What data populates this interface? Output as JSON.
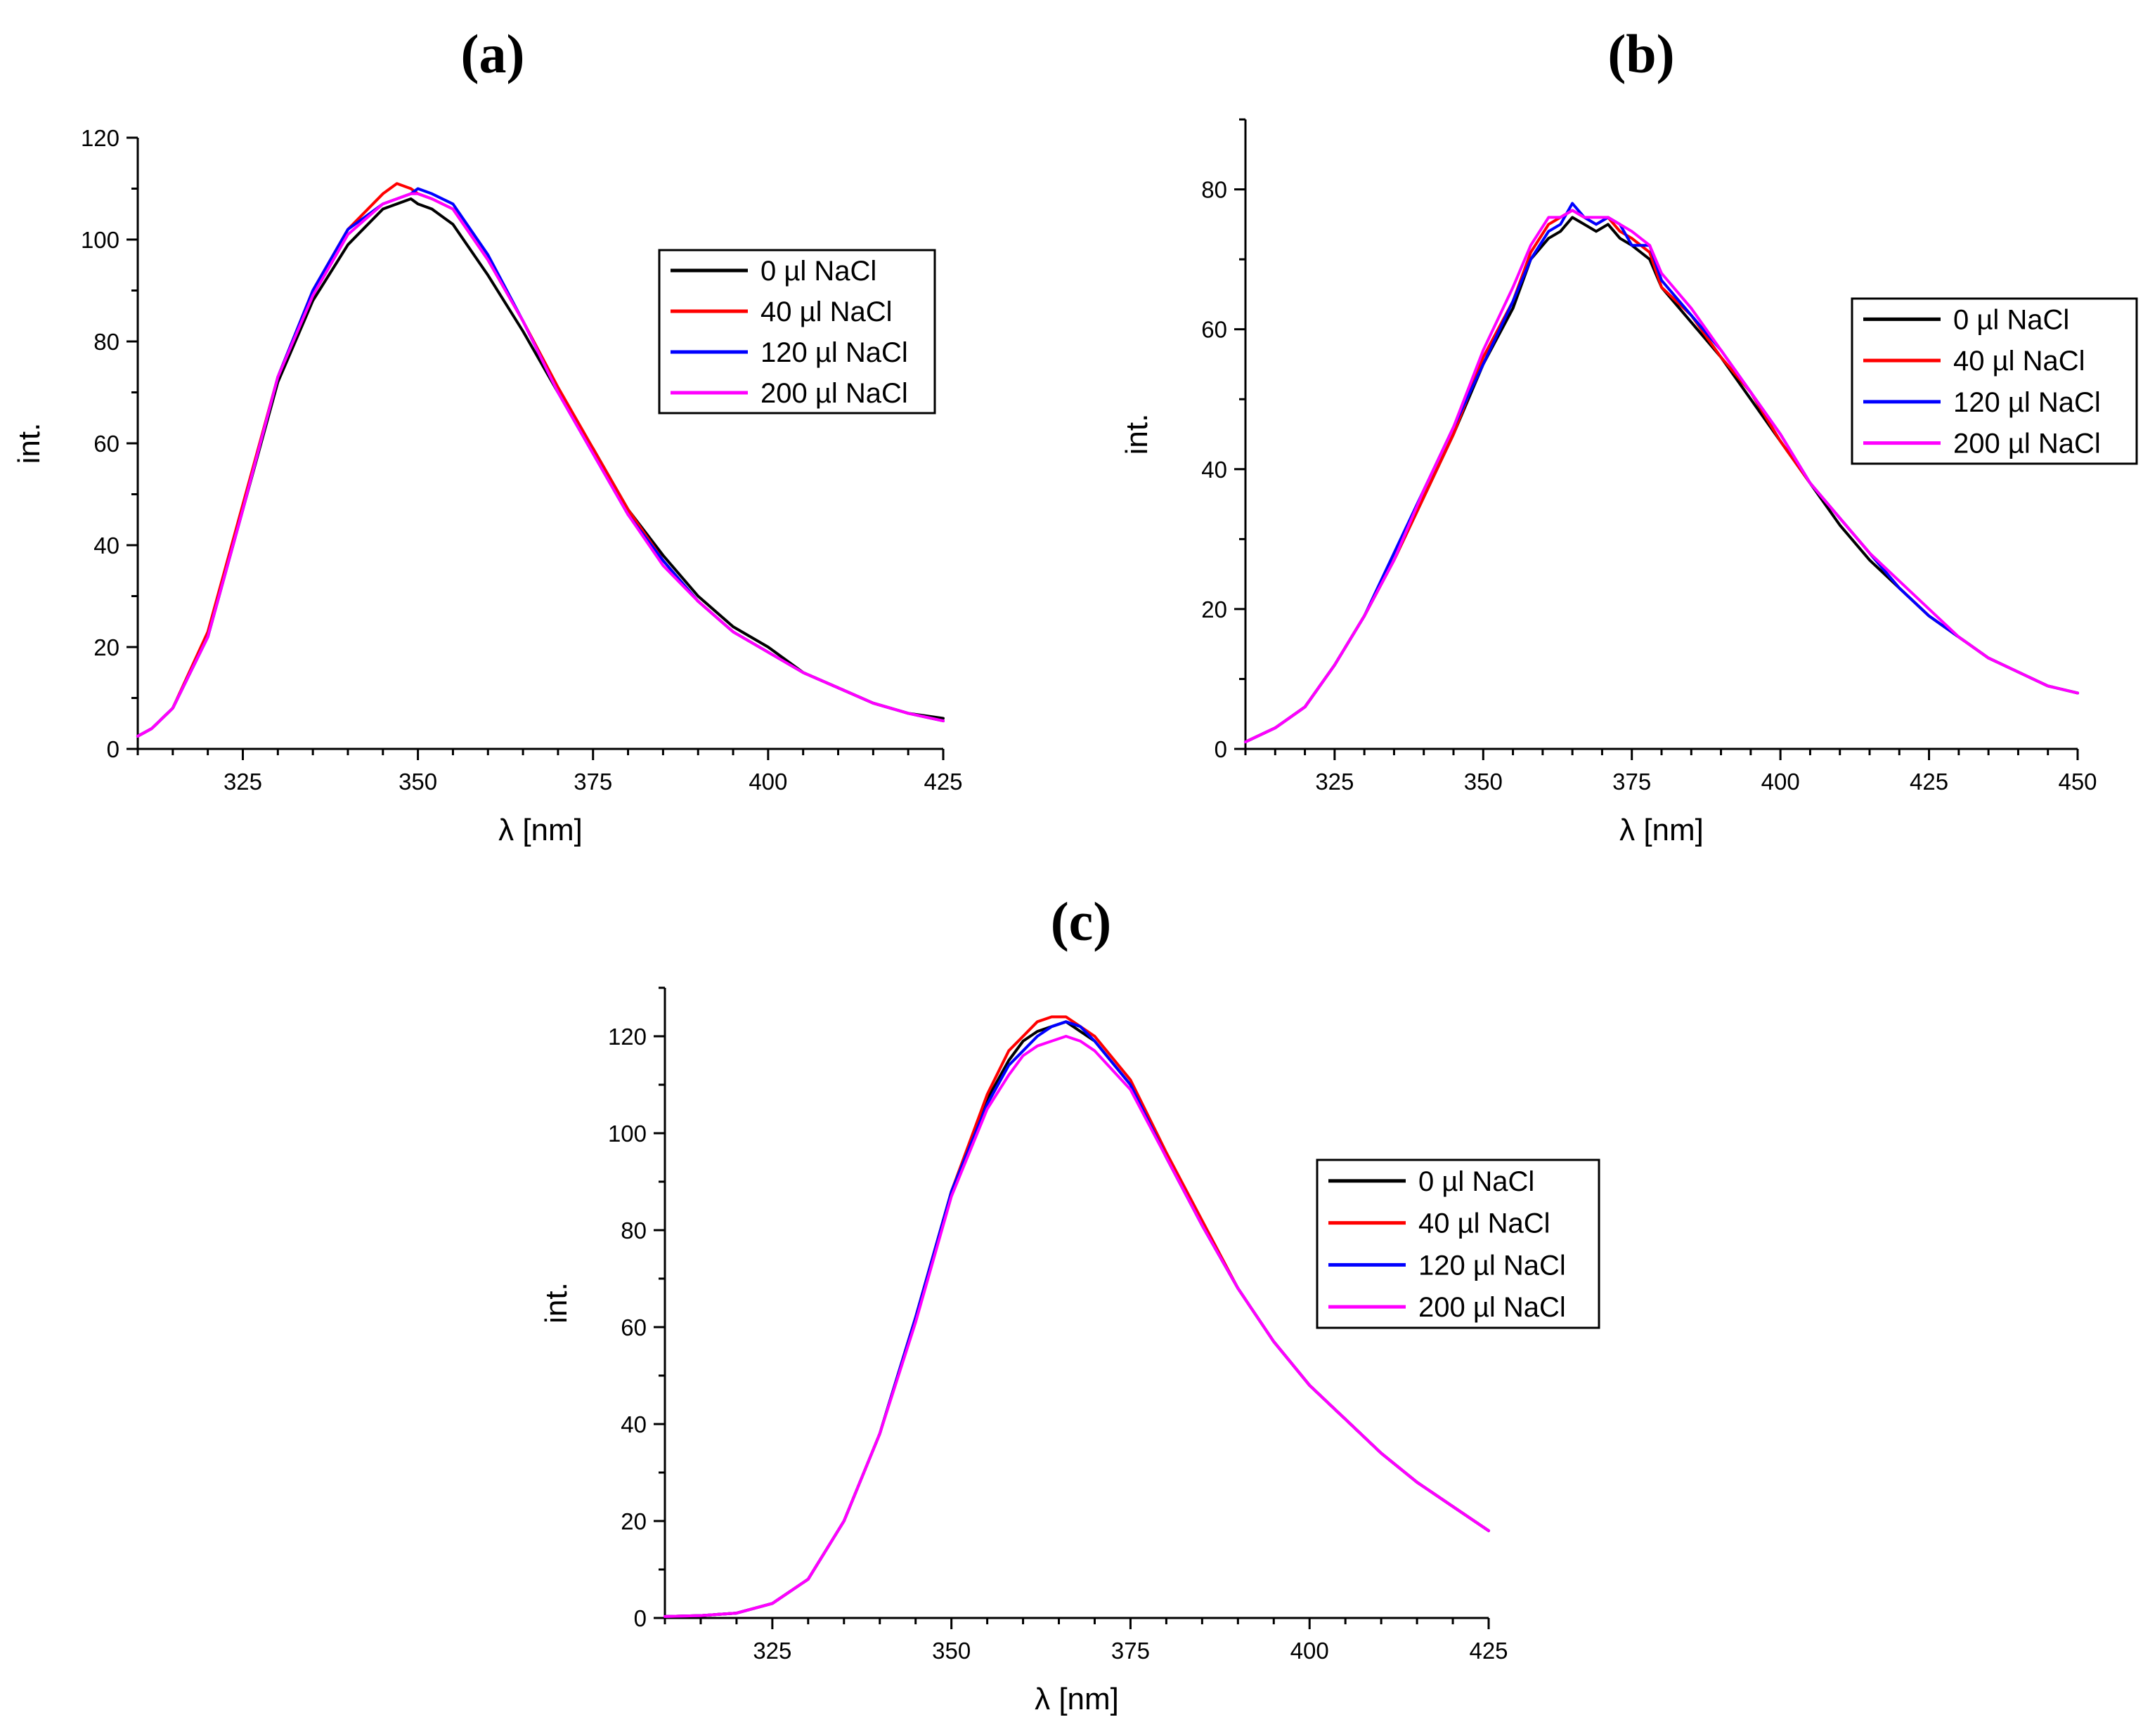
{
  "figure": {
    "legend_title": "",
    "series_names": [
      "0 µl NaCl",
      "40 µl NaCl",
      "120 µl NaCl",
      "200 µl NaCl"
    ],
    "series_colors": [
      "#000000",
      "#ff0000",
      "#0000ff",
      "#ff00ff"
    ]
  },
  "chart_data": [
    {
      "id": "a",
      "type": "line",
      "title": "(a)",
      "xlabel": "λ [nm]",
      "ylabel": "int.",
      "xlim": [
        310,
        425
      ],
      "ylim": [
        0,
        120
      ],
      "xticks": [
        325,
        350,
        375,
        400,
        425
      ],
      "yticks": [
        0,
        20,
        40,
        60,
        80,
        100,
        120
      ],
      "legend_position": "top-right",
      "series": [
        {
          "name": "0 µl NaCl",
          "color": "#000000",
          "x": [
            310,
            312,
            315,
            320,
            325,
            330,
            335,
            340,
            345,
            347,
            349,
            350,
            352,
            355,
            360,
            365,
            370,
            375,
            380,
            385,
            390,
            395,
            400,
            405,
            410,
            415,
            420,
            425
          ],
          "y": [
            2.5,
            4,
            8,
            22,
            47,
            72,
            88,
            99,
            106,
            107,
            108,
            107,
            106,
            103,
            93,
            82,
            70,
            59,
            47,
            38,
            30,
            24,
            20,
            15,
            12,
            9,
            7,
            6
          ]
        },
        {
          "name": "40 µl NaCl",
          "color": "#ff0000",
          "x": [
            310,
            312,
            315,
            320,
            325,
            330,
            335,
            340,
            345,
            347,
            349,
            350,
            352,
            355,
            360,
            365,
            370,
            375,
            380,
            385,
            390,
            395,
            400,
            405,
            410,
            415,
            420,
            425
          ],
          "y": [
            2.5,
            4,
            8,
            23,
            48,
            73,
            90,
            102,
            109,
            111,
            110,
            109,
            108,
            106,
            96,
            84,
            71,
            59,
            47,
            37,
            29,
            23,
            19,
            15,
            12,
            9,
            7,
            5.5
          ]
        },
        {
          "name": "120 µl NaCl",
          "color": "#0000ff",
          "x": [
            310,
            312,
            315,
            320,
            325,
            330,
            335,
            340,
            345,
            347,
            349,
            350,
            352,
            355,
            360,
            365,
            370,
            375,
            380,
            385,
            390,
            395,
            400,
            405,
            410,
            415,
            420,
            425
          ],
          "y": [
            2.5,
            4,
            8,
            22,
            47,
            73,
            90,
            102,
            107,
            108,
            109,
            110,
            109,
            107,
            97,
            84,
            70,
            58,
            46,
            37,
            29,
            23,
            19,
            15,
            12,
            9,
            7,
            5.5
          ]
        },
        {
          "name": "200 µl NaCl",
          "color": "#ff00ff",
          "x": [
            310,
            312,
            315,
            320,
            325,
            330,
            335,
            340,
            345,
            347,
            349,
            350,
            352,
            355,
            360,
            365,
            370,
            375,
            380,
            385,
            390,
            395,
            400,
            405,
            410,
            415,
            420,
            425
          ],
          "y": [
            2.5,
            4,
            8,
            22,
            47,
            73,
            89,
            101,
            107,
            108,
            109,
            109,
            108,
            106,
            96,
            84,
            70,
            58,
            46,
            36,
            29,
            23,
            19,
            15,
            12,
            9,
            7,
            5.5
          ]
        }
      ]
    },
    {
      "id": "b",
      "type": "line",
      "title": "(b)",
      "xlabel": "λ [nm]",
      "ylabel": "int.",
      "xlim": [
        310,
        450
      ],
      "ylim": [
        0,
        90
      ],
      "xticks": [
        325,
        350,
        375,
        400,
        425,
        450
      ],
      "yticks": [
        0,
        20,
        40,
        60,
        80
      ],
      "legend_position": "right",
      "series": [
        {
          "name": "0 µl NaCl",
          "color": "#000000",
          "x": [
            310,
            315,
            320,
            325,
            330,
            335,
            340,
            345,
            350,
            355,
            358,
            361,
            363,
            365,
            367,
            369,
            371,
            373,
            375,
            378,
            380,
            385,
            390,
            395,
            400,
            405,
            410,
            415,
            420,
            425,
            430,
            435,
            440,
            445,
            450
          ],
          "y": [
            1,
            3,
            6,
            12,
            19,
            27,
            36,
            45,
            55,
            63,
            70,
            73,
            74,
            76,
            75,
            74,
            75,
            73,
            72,
            70,
            66,
            61,
            56,
            50,
            44,
            38,
            32,
            27,
            23,
            19,
            16,
            13,
            11,
            9,
            8
          ]
        },
        {
          "name": "40 µl NaCl",
          "color": "#ff0000",
          "x": [
            310,
            315,
            320,
            325,
            330,
            335,
            340,
            345,
            350,
            355,
            358,
            361,
            363,
            365,
            367,
            369,
            371,
            373,
            375,
            378,
            380,
            385,
            390,
            395,
            400,
            405,
            410,
            415,
            420,
            425,
            430,
            435,
            440,
            445,
            450
          ],
          "y": [
            1,
            3,
            6,
            12,
            19,
            27,
            36,
            45,
            56,
            64,
            71,
            75,
            76,
            77,
            76,
            75,
            76,
            74,
            73,
            71,
            66,
            62,
            56,
            51,
            44,
            38,
            33,
            28,
            23,
            19,
            16,
            13,
            11,
            9,
            8
          ]
        },
        {
          "name": "120 µl NaCl",
          "color": "#0000ff",
          "x": [
            310,
            315,
            320,
            325,
            330,
            335,
            340,
            345,
            350,
            355,
            358,
            361,
            363,
            365,
            367,
            369,
            371,
            373,
            375,
            378,
            380,
            385,
            390,
            395,
            400,
            405,
            410,
            415,
            420,
            425,
            430,
            435,
            440,
            445,
            450
          ],
          "y": [
            1,
            3,
            6,
            12,
            19,
            28,
            37,
            46,
            55,
            64,
            70,
            74,
            75,
            78,
            76,
            75,
            76,
            75,
            72,
            72,
            67,
            62,
            57,
            51,
            45,
            38,
            33,
            28,
            23,
            19,
            16,
            13,
            11,
            9,
            8
          ]
        },
        {
          "name": "200 µl NaCl",
          "color": "#ff00ff",
          "x": [
            310,
            315,
            320,
            325,
            330,
            335,
            340,
            345,
            350,
            355,
            358,
            361,
            363,
            365,
            367,
            369,
            371,
            373,
            375,
            378,
            380,
            385,
            390,
            395,
            400,
            405,
            410,
            415,
            420,
            425,
            430,
            435,
            440,
            445,
            450
          ],
          "y": [
            1,
            3,
            6,
            12,
            19,
            27,
            37,
            46,
            57,
            66,
            72,
            76,
            76,
            77,
            76,
            76,
            76,
            75,
            74,
            72,
            68,
            63,
            57,
            51,
            45,
            38,
            33,
            28,
            24,
            20,
            16,
            13,
            11,
            9,
            8
          ]
        }
      ]
    },
    {
      "id": "c",
      "type": "line",
      "title": "(c)",
      "xlabel": "λ [nm]",
      "ylabel": "int.",
      "xlim": [
        310,
        425
      ],
      "ylim": [
        0,
        130
      ],
      "xticks": [
        325,
        350,
        375,
        400,
        425
      ],
      "yticks": [
        0,
        20,
        40,
        60,
        80,
        100,
        120
      ],
      "legend_position": "right",
      "series": [
        {
          "name": "0 µl NaCl",
          "color": "#000000",
          "x": [
            310,
            315,
            320,
            325,
            330,
            335,
            340,
            345,
            350,
            355,
            358,
            360,
            362,
            364,
            366,
            368,
            370,
            375,
            380,
            385,
            390,
            395,
            400,
            405,
            410,
            415,
            420,
            425
          ],
          "y": [
            0.3,
            0.5,
            1,
            3,
            8,
            20,
            38,
            62,
            88,
            107,
            115,
            119,
            121,
            122,
            123,
            121,
            119,
            110,
            95,
            81,
            68,
            57,
            48,
            41,
            34,
            28,
            23,
            18
          ]
        },
        {
          "name": "40 µl NaCl",
          "color": "#ff0000",
          "x": [
            310,
            315,
            320,
            325,
            330,
            335,
            340,
            345,
            350,
            355,
            358,
            360,
            362,
            364,
            366,
            368,
            370,
            375,
            380,
            385,
            390,
            395,
            400,
            405,
            410,
            415,
            420,
            425
          ],
          "y": [
            0.3,
            0.5,
            1,
            3,
            8,
            20,
            38,
            62,
            88,
            108,
            117,
            120,
            123,
            124,
            124,
            122,
            120,
            111,
            96,
            82,
            68,
            57,
            48,
            41,
            34,
            28,
            23,
            18
          ]
        },
        {
          "name": "120 µl NaCl",
          "color": "#0000ff",
          "x": [
            310,
            315,
            320,
            325,
            330,
            335,
            340,
            345,
            350,
            355,
            358,
            360,
            362,
            364,
            366,
            368,
            370,
            375,
            380,
            385,
            390,
            395,
            400,
            405,
            410,
            415,
            420,
            425
          ],
          "y": [
            0.3,
            0.5,
            1,
            3,
            8,
            20,
            38,
            62,
            88,
            106,
            114,
            117,
            120,
            122,
            123,
            122,
            119,
            110,
            95,
            81,
            68,
            57,
            48,
            41,
            34,
            28,
            23,
            18
          ]
        },
        {
          "name": "200 µl NaCl",
          "color": "#ff00ff",
          "x": [
            310,
            315,
            320,
            325,
            330,
            335,
            340,
            345,
            350,
            355,
            358,
            360,
            362,
            364,
            366,
            368,
            370,
            375,
            380,
            385,
            390,
            395,
            400,
            405,
            410,
            415,
            420,
            425
          ],
          "y": [
            0.3,
            0.5,
            1,
            3,
            8,
            20,
            38,
            61,
            87,
            105,
            112,
            116,
            118,
            119,
            120,
            119,
            117,
            109,
            95,
            81,
            68,
            57,
            48,
            41,
            34,
            28,
            23,
            18
          ]
        }
      ]
    }
  ]
}
